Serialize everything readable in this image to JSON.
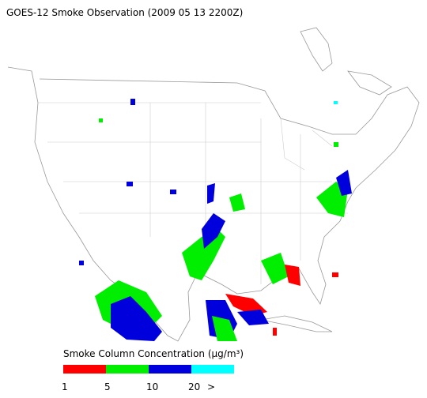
{
  "title": "GOES-12 Smoke Observation (2009 05 13  2200Z)",
  "legend": {
    "title": "Smoke Column Concentration (μg/m³)",
    "colors": [
      "#ff0000",
      "#00ee00",
      "#0000dd",
      "#00ffff"
    ],
    "ticks": [
      "1",
      "5",
      "10",
      "20",
      ">"
    ]
  }
}
